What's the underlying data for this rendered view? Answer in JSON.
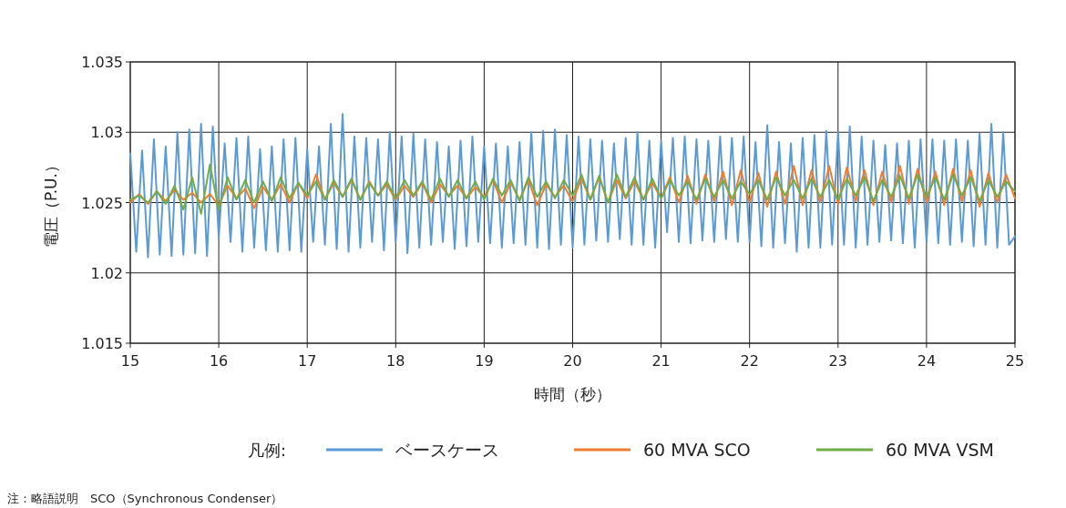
{
  "chart_data": {
    "type": "line",
    "xlabel": "時間（秒）",
    "ylabel": "電圧（P.U.）",
    "legend_title": "凡例:",
    "annotations": [
      "注：略語説明　SCO（Synchronous Condenser）"
    ],
    "xlim": [
      15,
      25
    ],
    "ylim": [
      1.015,
      1.035
    ],
    "xticks": [
      15,
      16,
      17,
      18,
      19,
      20,
      21,
      22,
      23,
      24,
      25
    ],
    "yticks": [
      1.015,
      1.02,
      1.025,
      1.03,
      1.035
    ],
    "grid": true,
    "legend": "bottom",
    "x": [
      15.0,
      15.1,
      15.2,
      15.3,
      15.4,
      15.5,
      15.6,
      15.7,
      15.8,
      15.9,
      16.0,
      16.1,
      16.2,
      16.3,
      16.4,
      16.5,
      16.6,
      16.7,
      16.8,
      16.9,
      17.0,
      17.1,
      17.2,
      17.3,
      17.4,
      17.5,
      17.6,
      17.7,
      17.8,
      17.9,
      18.0,
      18.1,
      18.2,
      18.3,
      18.4,
      18.5,
      18.6,
      18.7,
      18.8,
      18.9,
      19.0,
      19.1,
      19.2,
      19.3,
      19.4,
      19.5,
      19.6,
      19.7,
      19.8,
      19.9,
      20.0,
      20.1,
      20.2,
      20.3,
      20.4,
      20.5,
      20.6,
      20.7,
      20.8,
      20.9,
      21.0,
      21.1,
      21.2,
      21.3,
      21.4,
      21.5,
      21.6,
      21.7,
      21.8,
      21.9,
      22.0,
      22.1,
      22.2,
      22.3,
      22.4,
      22.5,
      22.6,
      22.7,
      22.8,
      22.9,
      23.0,
      23.1,
      23.2,
      23.3,
      23.4,
      23.5,
      23.6,
      23.7,
      23.8,
      23.9,
      24.0,
      24.1,
      24.2,
      24.3,
      24.4,
      24.5,
      24.6,
      24.7,
      24.8,
      24.9,
      25.0
    ],
    "series": [
      {
        "name": "ベースケース",
        "color": "#5b9bd5",
        "x": [
          15.0,
          15.067,
          15.133,
          15.2,
          15.267,
          15.333,
          15.4,
          15.467,
          15.533,
          15.6,
          15.667,
          15.733,
          15.8,
          15.867,
          15.933,
          16.0,
          16.067,
          16.133,
          16.2,
          16.267,
          16.333,
          16.4,
          16.467,
          16.533,
          16.6,
          16.667,
          16.733,
          16.8,
          16.867,
          16.933,
          17.0,
          17.067,
          17.133,
          17.2,
          17.267,
          17.333,
          17.4,
          17.467,
          17.533,
          17.6,
          17.667,
          17.733,
          17.8,
          17.867,
          17.933,
          18.0,
          18.067,
          18.133,
          18.2,
          18.267,
          18.333,
          18.4,
          18.467,
          18.533,
          18.6,
          18.667,
          18.733,
          18.8,
          18.867,
          18.933,
          19.0,
          19.067,
          19.133,
          19.2,
          19.267,
          19.333,
          19.4,
          19.467,
          19.533,
          19.6,
          19.667,
          19.733,
          19.8,
          19.867,
          19.933,
          20.0,
          20.067,
          20.133,
          20.2,
          20.267,
          20.333,
          20.4,
          20.467,
          20.533,
          20.6,
          20.667,
          20.733,
          20.8,
          20.867,
          20.933,
          21.0,
          21.067,
          21.133,
          21.2,
          21.267,
          21.333,
          21.4,
          21.467,
          21.533,
          21.6,
          21.667,
          21.733,
          21.8,
          21.867,
          21.933,
          22.0,
          22.067,
          22.133,
          22.2,
          22.267,
          22.333,
          22.4,
          22.467,
          22.533,
          22.6,
          22.667,
          22.733,
          22.8,
          22.867,
          22.933,
          23.0,
          23.067,
          23.133,
          23.2,
          23.267,
          23.333,
          23.4,
          23.467,
          23.533,
          23.6,
          23.667,
          23.733,
          23.8,
          23.867,
          23.933,
          24.0,
          24.067,
          24.133,
          24.2,
          24.267,
          24.333,
          24.4,
          24.467,
          24.533,
          24.6,
          24.667,
          24.733,
          24.8,
          24.867,
          24.933,
          25.0
        ],
        "values": [
          1.0285,
          1.0215,
          1.0287,
          1.0211,
          1.0295,
          1.0213,
          1.029,
          1.0212,
          1.03,
          1.0213,
          1.0302,
          1.0214,
          1.0306,
          1.0212,
          1.0304,
          1.0225,
          1.0292,
          1.0222,
          1.0296,
          1.0215,
          1.0297,
          1.0218,
          1.0288,
          1.0216,
          1.029,
          1.0215,
          1.0295,
          1.0216,
          1.0296,
          1.0215,
          1.0288,
          1.0222,
          1.029,
          1.022,
          1.0306,
          1.0217,
          1.0313,
          1.0215,
          1.0297,
          1.0218,
          1.0296,
          1.0222,
          1.0295,
          1.0216,
          1.03,
          1.0222,
          1.0297,
          1.0214,
          1.0299,
          1.0218,
          1.0295,
          1.022,
          1.0293,
          1.0222,
          1.029,
          1.0217,
          1.0294,
          1.0219,
          1.0297,
          1.0222,
          1.029,
          1.0221,
          1.0292,
          1.0218,
          1.029,
          1.0221,
          1.0293,
          1.022,
          1.03,
          1.0218,
          1.0301,
          1.0217,
          1.0302,
          1.022,
          1.0298,
          1.0218,
          1.0297,
          1.022,
          1.0295,
          1.0223,
          1.0294,
          1.0222,
          1.0292,
          1.0224,
          1.0296,
          1.022,
          1.03,
          1.022,
          1.0294,
          1.0218,
          1.0294,
          1.0229,
          1.0296,
          1.0222,
          1.0297,
          1.0221,
          1.0295,
          1.0223,
          1.0294,
          1.0222,
          1.0297,
          1.0224,
          1.0296,
          1.0222,
          1.0297,
          1.0222,
          1.0293,
          1.0219,
          1.0305,
          1.0218,
          1.0293,
          1.0221,
          1.0292,
          1.0215,
          1.0296,
          1.0218,
          1.0298,
          1.0218,
          1.0301,
          1.022,
          1.03,
          1.022,
          1.0304,
          1.0218,
          1.0297,
          1.022,
          1.0294,
          1.0222,
          1.0291,
          1.0223,
          1.0292,
          1.0221,
          1.0294,
          1.0218,
          1.0295,
          1.0222,
          1.0295,
          1.0221,
          1.0294,
          1.022,
          1.0295,
          1.0222,
          1.0294,
          1.0219,
          1.0299,
          1.022,
          1.0306,
          1.0218,
          1.03,
          1.022,
          1.0226
        ]
      },
      {
        "name": "60 MVA SCO",
        "color": "#ed7d31",
        "values": [
          1.025,
          1.0256,
          1.0249,
          1.0258,
          1.0251,
          1.0259,
          1.0252,
          1.0257,
          1.025,
          1.0256,
          1.0248,
          1.0262,
          1.0253,
          1.026,
          1.0246,
          1.0261,
          1.0252,
          1.0263,
          1.025,
          1.0264,
          1.0253,
          1.027,
          1.0252,
          1.0264,
          1.0254,
          1.0266,
          1.0252,
          1.0265,
          1.0255,
          1.0263,
          1.0252,
          1.0262,
          1.0254,
          1.0264,
          1.025,
          1.0263,
          1.0255,
          1.0262,
          1.0253,
          1.0261,
          1.0254,
          1.0266,
          1.025,
          1.0264,
          1.0252,
          1.0266,
          1.0248,
          1.0263,
          1.0254,
          1.0262,
          1.0251,
          1.0267,
          1.0252,
          1.0268,
          1.025,
          1.0266,
          1.0253,
          1.0265,
          1.0252,
          1.0264,
          1.0253,
          1.0268,
          1.025,
          1.0269,
          1.0249,
          1.027,
          1.0251,
          1.0272,
          1.0248,
          1.0273,
          1.025,
          1.0271,
          1.0247,
          1.0272,
          1.0249,
          1.0276,
          1.0248,
          1.0273,
          1.025,
          1.0276,
          1.0249,
          1.0275,
          1.0251,
          1.0273,
          1.0248,
          1.0272,
          1.025,
          1.0276,
          1.0249,
          1.0274,
          1.025,
          1.0272,
          1.0248,
          1.0274,
          1.0251,
          1.0273,
          1.0247,
          1.0271,
          1.025,
          1.027,
          1.0253
        ]
      },
      {
        "name": "60 MVA VSM",
        "color": "#70ad47",
        "values": [
          1.0252,
          1.0255,
          1.025,
          1.0258,
          1.0249,
          1.0262,
          1.0245,
          1.0268,
          1.0242,
          1.0277,
          1.0245,
          1.0268,
          1.0252,
          1.0266,
          1.025,
          1.0265,
          1.0251,
          1.0268,
          1.0253,
          1.0264,
          1.0255,
          1.0265,
          1.0252,
          1.0266,
          1.0254,
          1.0267,
          1.0252,
          1.0264,
          1.0255,
          1.0265,
          1.0253,
          1.0266,
          1.0255,
          1.0265,
          1.0252,
          1.0267,
          1.0254,
          1.0266,
          1.0253,
          1.0265,
          1.0252,
          1.0267,
          1.0255,
          1.0266,
          1.0251,
          1.0268,
          1.0254,
          1.0265,
          1.0253,
          1.0266,
          1.0255,
          1.027,
          1.0252,
          1.0269,
          1.025,
          1.027,
          1.0254,
          1.0268,
          1.0252,
          1.0267,
          1.0253,
          1.0266,
          1.0255,
          1.0265,
          1.0252,
          1.0267,
          1.0254,
          1.0266,
          1.0253,
          1.0265,
          1.0256,
          1.0266,
          1.0252,
          1.0268,
          1.0255,
          1.0266,
          1.0253,
          1.0267,
          1.0254,
          1.0266,
          1.0252,
          1.0267,
          1.0255,
          1.0268,
          1.0251,
          1.0266,
          1.0254,
          1.0269,
          1.0253,
          1.027,
          1.0254,
          1.0268,
          1.0252,
          1.027,
          1.0255,
          1.0268,
          1.0251,
          1.0266,
          1.0254,
          1.0265,
          1.0258
        ]
      }
    ]
  }
}
